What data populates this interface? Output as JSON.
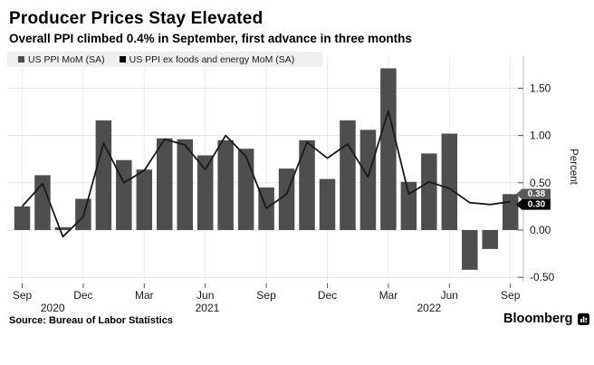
{
  "header": {
    "title": "Producer Prices Stay Elevated",
    "subtitle": "Overall PPI climbed 0.4% in September, first advance in three months"
  },
  "legend": {
    "items": [
      {
        "label": "US PPI MoM (SA)",
        "color": "#4d4e50"
      },
      {
        "label": "US PPI ex foods and energy MoM (SA)",
        "color": "#000000"
      }
    ]
  },
  "chart_data": {
    "type": "bar+line",
    "categories": [
      "Sep 2020",
      "Oct 2020",
      "Nov 2020",
      "Dec 2020",
      "Jan 2021",
      "Feb 2021",
      "Mar 2021",
      "Apr 2021",
      "May 2021",
      "Jun 2021",
      "Jul 2021",
      "Aug 2021",
      "Sep 2021",
      "Oct 2021",
      "Nov 2021",
      "Dec 2021",
      "Jan 2022",
      "Feb 2022",
      "Mar 2022",
      "Apr 2022",
      "May 2022",
      "Jun 2022",
      "Jul 2022",
      "Aug 2022",
      "Sep 2022"
    ],
    "series": [
      {
        "name": "US PPI MoM (SA)",
        "type": "bar",
        "color": "#4d4e50",
        "values": [
          0.25,
          0.58,
          0.03,
          0.33,
          1.16,
          0.74,
          0.64,
          0.97,
          0.96,
          0.79,
          0.95,
          0.86,
          0.45,
          0.65,
          0.95,
          0.54,
          1.16,
          1.06,
          1.71,
          0.51,
          0.81,
          1.02,
          -0.42,
          -0.2,
          0.38
        ]
      },
      {
        "name": "US PPI ex foods and energy MoM (SA)",
        "type": "line",
        "color": "#1a1a1a",
        "values": [
          0.25,
          0.49,
          -0.07,
          0.14,
          0.92,
          0.5,
          0.63,
          0.96,
          0.9,
          0.64,
          1.0,
          0.78,
          0.23,
          0.38,
          0.93,
          0.76,
          0.91,
          0.56,
          1.26,
          0.38,
          0.51,
          0.44,
          0.29,
          0.27,
          0.3
        ]
      }
    ],
    "ylabel": "Percent",
    "ylim": [
      -0.55,
      1.84
    ],
    "grid": true,
    "legend_position": "top-left",
    "y_ticks": [
      {
        "value": 1.5,
        "label": "1.50"
      },
      {
        "value": 1.0,
        "label": "1.00"
      },
      {
        "value": 0.5,
        "label": "0.50"
      },
      {
        "value": 0.0,
        "label": "0.00"
      },
      {
        "value": -0.5,
        "label": "-0.50"
      }
    ],
    "x_ticks": [
      {
        "index": 0,
        "label": "Sep"
      },
      {
        "index": 3,
        "label": "Dec"
      },
      {
        "index": 6,
        "label": "Mar"
      },
      {
        "index": 9,
        "label": "Jun"
      },
      {
        "index": 12,
        "label": "Sep"
      },
      {
        "index": 15,
        "label": "Dec"
      },
      {
        "index": 18,
        "label": "Mar"
      },
      {
        "index": 21,
        "label": "Jun"
      },
      {
        "index": 24,
        "label": "Sep"
      }
    ],
    "year_labels": [
      {
        "index": 1.5,
        "label": "2020"
      },
      {
        "index": 9.1,
        "label": "2021"
      },
      {
        "index": 20.0,
        "label": "2022"
      }
    ],
    "end_labels": [
      {
        "value": 0.38,
        "label": "0.38",
        "color": "#58595b",
        "text_color": "#ffffff"
      },
      {
        "value": 0.3,
        "label": "0.30",
        "color": "#000000",
        "text_color": "#ffffff"
      }
    ]
  },
  "footer": {
    "source": "Source: Bureau of Labor Statistics",
    "brand": "Bloomberg"
  }
}
